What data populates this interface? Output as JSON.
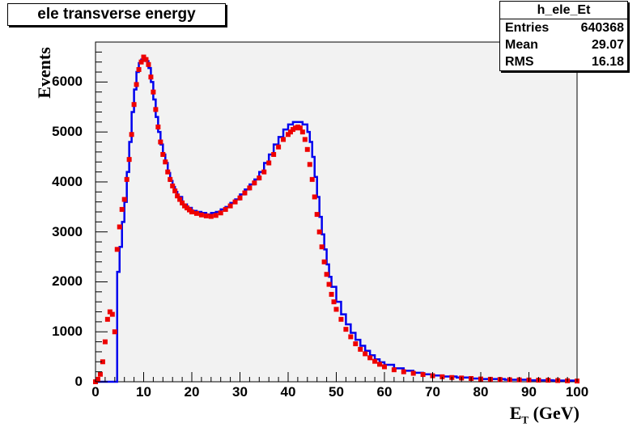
{
  "title": "ele transverse energy",
  "stats": {
    "name": "h_ele_Et",
    "rows": [
      {
        "key": "Entries",
        "value": "640368"
      },
      {
        "key": "Mean",
        "value": "29.07"
      },
      {
        "key": "RMS",
        "value": "16.18"
      }
    ]
  },
  "axes": {
    "xlabel_main": "E",
    "xlabel_sub": "T",
    "xlabel_rest": " (GeV)",
    "ylabel": "Events",
    "xticks": [
      "0",
      "10",
      "20",
      "30",
      "40",
      "50",
      "60",
      "70",
      "80",
      "90",
      "100"
    ],
    "yticks": [
      "0",
      "1000",
      "2000",
      "3000",
      "4000",
      "5000",
      "6000"
    ]
  },
  "colors": {
    "frame_bg": "#f2f2f2",
    "histogram": "#0000ee",
    "markers": "#ee0000"
  },
  "chart_data": {
    "type": "line",
    "xlabel": "E_T (GeV)",
    "ylabel": "Events",
    "xlim": [
      0,
      100
    ],
    "ylim": [
      0,
      6800
    ],
    "grid": false,
    "series": [
      {
        "style": "histogram",
        "x": [
          0,
          2,
          4,
          4.5,
          5,
          5.5,
          6,
          6.5,
          7,
          7.5,
          8,
          8.5,
          9,
          9.5,
          10,
          10.5,
          11,
          11.5,
          12,
          12.5,
          13,
          13.5,
          14,
          14.5,
          15,
          15.5,
          16,
          16.5,
          17,
          18,
          19,
          20,
          21,
          22,
          23,
          24,
          25,
          26,
          27,
          28,
          29,
          30,
          31,
          32,
          33,
          34,
          35,
          36,
          37,
          38,
          39,
          40,
          41,
          42,
          43,
          44,
          44.5,
          45,
          45.5,
          46,
          46.5,
          47,
          47.5,
          48,
          48.5,
          49,
          50,
          51,
          52,
          53,
          54,
          55,
          56,
          57,
          58,
          59,
          60,
          62,
          64,
          66,
          68,
          70,
          72,
          75,
          78,
          80,
          85,
          90,
          95,
          100
        ],
        "y": [
          0,
          0,
          0,
          2200,
          2700,
          3200,
          3600,
          4200,
          4800,
          5400,
          5850,
          6200,
          6380,
          6450,
          6480,
          6420,
          6280,
          6000,
          5650,
          5300,
          5000,
          4750,
          4550,
          4380,
          4180,
          4020,
          3900,
          3800,
          3700,
          3550,
          3480,
          3420,
          3400,
          3380,
          3350,
          3380,
          3400,
          3450,
          3500,
          3580,
          3650,
          3750,
          3850,
          3950,
          4050,
          4200,
          4380,
          4550,
          4750,
          4900,
          5050,
          5150,
          5200,
          5200,
          5150,
          5000,
          4800,
          4500,
          4100,
          3700,
          3300,
          2950,
          2650,
          2350,
          2100,
          1900,
          1600,
          1350,
          1150,
          980,
          840,
          720,
          620,
          530,
          450,
          390,
          340,
          270,
          220,
          180,
          150,
          125,
          105,
          85,
          65,
          55,
          40,
          30,
          25,
          20
        ]
      },
      {
        "style": "markers",
        "x": [
          0,
          0.5,
          1,
          1.5,
          2,
          2.5,
          3,
          3.5,
          4,
          4.5,
          5,
          5.5,
          6,
          6.5,
          7,
          7.5,
          8,
          8.5,
          9,
          9.5,
          10,
          10.5,
          11,
          11.5,
          12,
          12.5,
          13,
          13.5,
          14,
          14.5,
          15,
          15.5,
          16,
          16.5,
          17,
          17.5,
          18,
          18.5,
          19,
          19.5,
          20,
          21,
          22,
          23,
          24,
          25,
          26,
          27,
          28,
          29,
          30,
          31,
          32,
          33,
          34,
          35,
          36,
          37,
          38,
          39,
          40,
          40.5,
          41,
          41.5,
          42,
          42.5,
          43,
          43.5,
          44,
          44.5,
          45,
          45.5,
          46,
          46.5,
          47,
          47.5,
          48,
          48.5,
          49,
          49.5,
          50,
          51,
          52,
          53,
          54,
          55,
          56,
          57,
          58,
          59,
          60,
          62,
          64,
          66,
          68,
          70,
          72,
          74,
          76,
          78,
          80,
          82,
          84,
          86,
          88,
          90,
          92,
          94,
          96,
          98,
          100
        ],
        "y": [
          0,
          50,
          150,
          400,
          800,
          1250,
          1400,
          1350,
          1000,
          2650,
          3100,
          3450,
          3650,
          4050,
          4450,
          4950,
          5550,
          5950,
          6250,
          6400,
          6500,
          6450,
          6350,
          6100,
          5800,
          5450,
          5100,
          4800,
          4550,
          4400,
          4200,
          4050,
          3920,
          3820,
          3720,
          3650,
          3580,
          3520,
          3480,
          3440,
          3400,
          3370,
          3340,
          3320,
          3310,
          3330,
          3380,
          3450,
          3520,
          3600,
          3680,
          3780,
          3880,
          3980,
          4080,
          4200,
          4380,
          4550,
          4700,
          4850,
          4950,
          5000,
          5050,
          5080,
          5100,
          5080,
          5000,
          4850,
          4650,
          4350,
          4050,
          3700,
          3350,
          3000,
          2700,
          2400,
          2150,
          1950,
          1750,
          1600,
          1450,
          1250,
          1050,
          900,
          760,
          650,
          560,
          480,
          410,
          350,
          300,
          240,
          200,
          170,
          145,
          120,
          100,
          85,
          75,
          65,
          55,
          50,
          45,
          40,
          38,
          35,
          32,
          30,
          25,
          20,
          15
        ]
      }
    ]
  }
}
